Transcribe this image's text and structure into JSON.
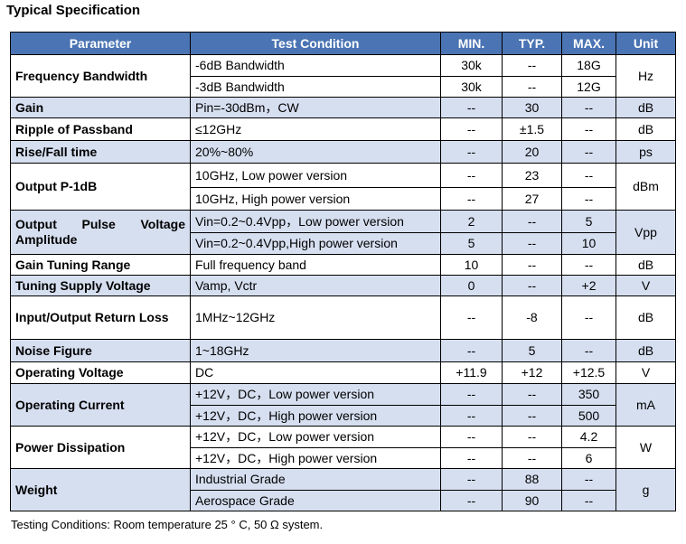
{
  "title": "Typical Specification",
  "headers": {
    "parameter": "Parameter",
    "condition": "Test Condition",
    "min": "MIN.",
    "typ": "TYP.",
    "max": "MAX.",
    "unit": "Unit"
  },
  "rows": [
    {
      "parameter": "Frequency Bandwidth",
      "unit": "Hz",
      "sub": [
        {
          "condition": "-6dB Bandwidth",
          "min": "30k",
          "typ": "--",
          "max": "18G"
        },
        {
          "condition": "-3dB Bandwidth",
          "min": "30k",
          "typ": "--",
          "max": "12G"
        }
      ]
    },
    {
      "parameter": "Gain",
      "unit": "dB",
      "sub": [
        {
          "condition": "Pin=-30dBm，CW",
          "min": "--",
          "typ": "30",
          "max": "--"
        }
      ]
    },
    {
      "parameter": "Ripple of Passband",
      "unit": "dB",
      "sub": [
        {
          "condition": "≤12GHz",
          "min": "--",
          "typ": "±1.5",
          "max": "--"
        }
      ]
    },
    {
      "parameter": "Rise/Fall time",
      "unit": "ps",
      "sub": [
        {
          "condition": "20%~80%",
          "min": "--",
          "typ": "20",
          "max": "--"
        }
      ]
    },
    {
      "parameter": "Output P-1dB",
      "unit": "dBm",
      "sub": [
        {
          "condition": "10GHz, Low power version",
          "min": "--",
          "typ": "23",
          "max": "--"
        },
        {
          "condition": "10GHz, High power version",
          "min": "--",
          "typ": "27",
          "max": "--"
        }
      ]
    },
    {
      "parameter": "Output Pulse Voltage Amplitude",
      "unit": "Vpp",
      "sub": [
        {
          "condition": "Vin=0.2~0.4Vpp，Low power version",
          "min": "2",
          "typ": "--",
          "max": "5"
        },
        {
          "condition": "Vin=0.2~0.4Vpp,High power version",
          "min": "5",
          "typ": "--",
          "max": "10"
        }
      ]
    },
    {
      "parameter": "Gain Tuning Range",
      "unit": "dB",
      "sub": [
        {
          "condition": "Full frequency band",
          "min": "10",
          "typ": "--",
          "max": "--"
        }
      ]
    },
    {
      "parameter": "Tuning Supply Voltage",
      "unit": "V",
      "sub": [
        {
          "condition": "Vamp, Vctr",
          "min": "0",
          "typ": "--",
          "max": "+2"
        }
      ]
    },
    {
      "parameter": "Input/Output Return Loss",
      "unit": "dB",
      "sub": [
        {
          "condition": "1MHz~12GHz",
          "min": "--",
          "typ": "-8",
          "max": "--"
        }
      ]
    },
    {
      "parameter": "Noise Figure",
      "unit": "dB",
      "sub": [
        {
          "condition": "1~18GHz",
          "min": "--",
          "typ": "5",
          "max": "--"
        }
      ]
    },
    {
      "parameter": "Operating Voltage",
      "unit": "V",
      "sub": [
        {
          "condition": "DC",
          "min": "+11.9",
          "typ": "+12",
          "max": "+12.5"
        }
      ]
    },
    {
      "parameter": "Operating Current",
      "unit": "mA",
      "sub": [
        {
          "condition": "+12V，DC，Low power version",
          "min": "--",
          "typ": "--",
          "max": "350"
        },
        {
          "condition": "+12V，DC，High power version",
          "min": "--",
          "typ": "--",
          "max": "500"
        }
      ]
    },
    {
      "parameter": "Power Dissipation",
      "unit": "W",
      "sub": [
        {
          "condition": "+12V，DC，Low power version",
          "min": "--",
          "typ": "--",
          "max": "4.2"
        },
        {
          "condition": "+12V，DC，High power version",
          "min": "--",
          "typ": "--",
          "max": "6"
        }
      ]
    },
    {
      "parameter": "Weight",
      "unit": "g",
      "sub": [
        {
          "condition": "Industrial Grade",
          "min": "--",
          "typ": "88",
          "max": "--"
        },
        {
          "condition": "Aerospace Grade",
          "min": "--",
          "typ": "90",
          "max": "--"
        }
      ]
    }
  ],
  "footnote": "Testing Conditions: Room temperature 25 ° C, 50 Ω system."
}
